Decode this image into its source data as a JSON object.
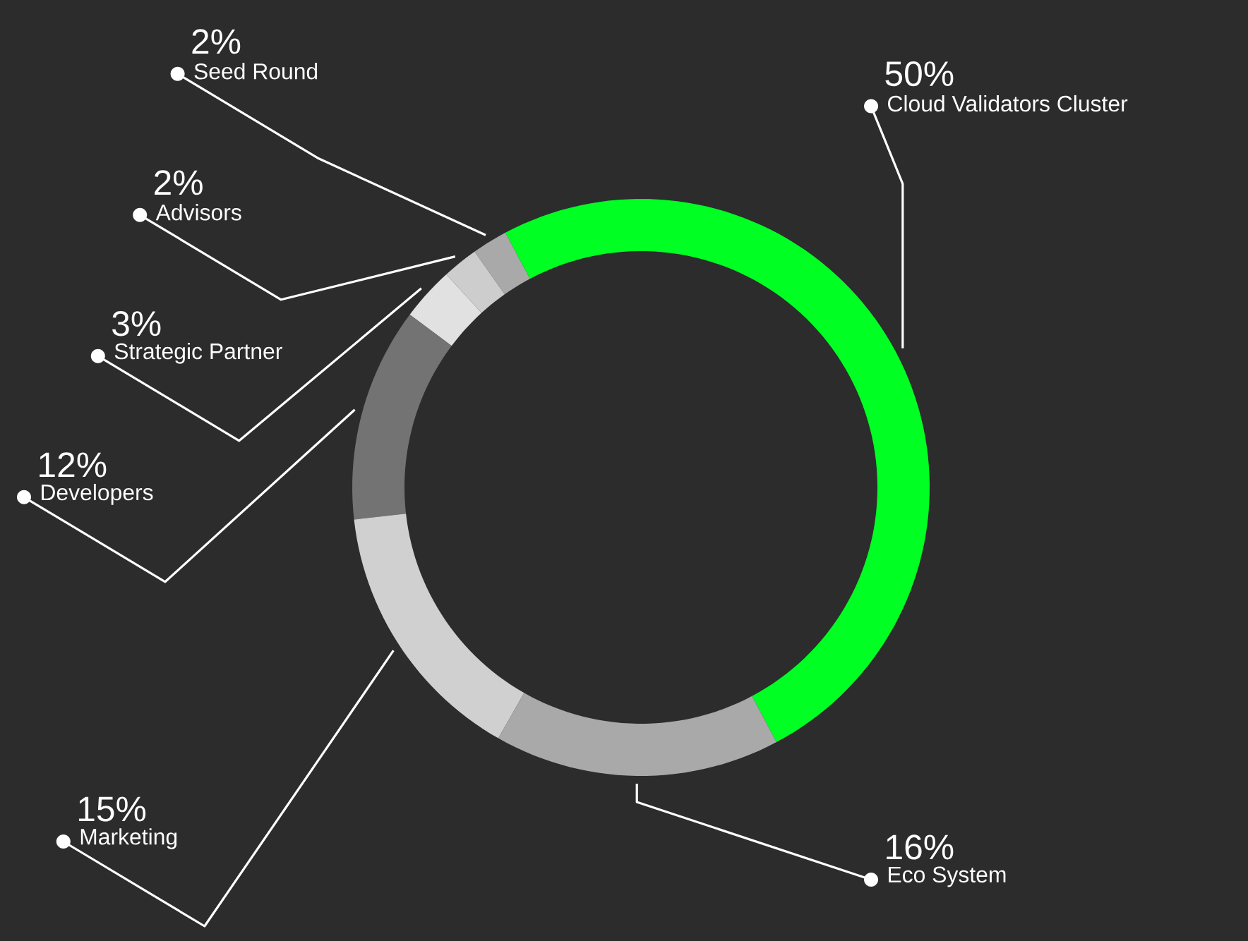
{
  "chart_data": {
    "type": "donut",
    "categories": [
      "Cloud Validators Cluster",
      "Eco System",
      "Marketing",
      "Developers",
      "Strategic Partner",
      "Advisors",
      "Seed Round"
    ],
    "values": [
      50,
      16,
      15,
      12,
      3,
      2,
      2
    ],
    "value_labels": [
      "50%",
      "16%",
      "15%",
      "12%",
      "3%",
      "2%",
      "2%"
    ],
    "colors": [
      "#00ff22",
      "#a9a9a9",
      "#d0d0d0",
      "#737373",
      "#e1e1e1",
      "#cdcdcd",
      "#a9a9a9"
    ]
  }
}
